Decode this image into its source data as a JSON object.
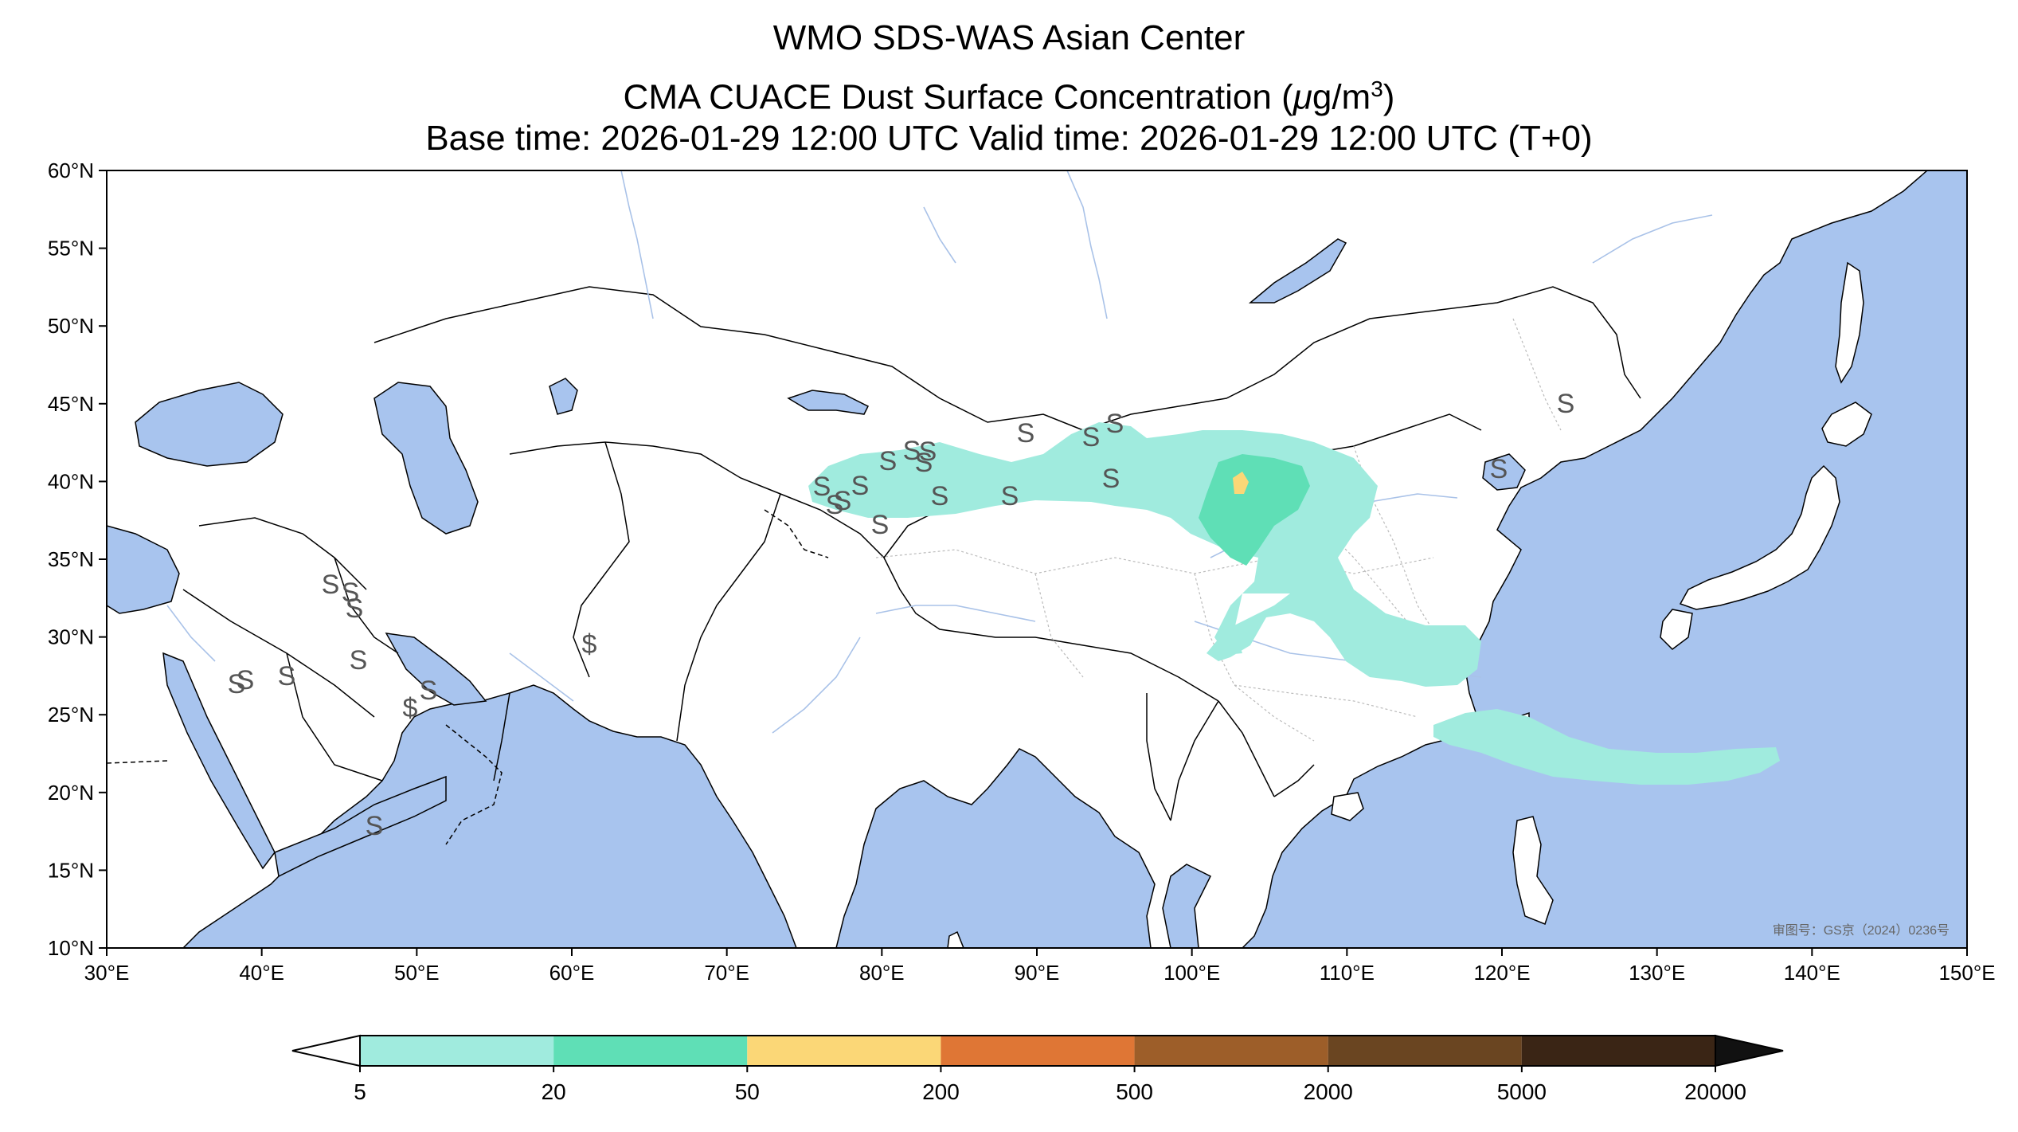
{
  "title": {
    "line1": "WMO SDS-WAS Asian Center",
    "line2_text": "CMA CUACE Dust Surface Concentration (",
    "line2_mu": "μ",
    "line2_unit": "g/m",
    "line2_exp": "3",
    "line2_close": ")",
    "line3": "Base time: 2026-01-29 12:00 UTC Valid time: 2026-01-29 12:00 UTC (T+0)"
  },
  "map": {
    "lon_ticks": [
      "30°E",
      "40°E",
      "50°E",
      "60°E",
      "70°E",
      "80°E",
      "90°E",
      "100°E",
      "110°E",
      "120°E",
      "130°E",
      "140°E",
      "150°E"
    ],
    "lat_ticks": [
      "60°N",
      "55°N",
      "50°N",
      "45°N",
      "40°N",
      "35°N",
      "30°N",
      "25°N",
      "20°N",
      "15°N",
      "10°N"
    ],
    "extent": {
      "lon": [
        30,
        150
      ],
      "lat": [
        10,
        60
      ]
    },
    "colors": {
      "ocean": "#a8c4ee",
      "land": "#ffffff",
      "border": "#000000",
      "river": "#a9c2e8",
      "province": "#bbbbbb"
    },
    "approval_text": "审图号：GS京（2024）0236号",
    "sandstorm_symbol": "S",
    "dust_symbol": "$"
  },
  "colorbar": {
    "levels": [
      "5",
      "20",
      "50",
      "200",
      "500",
      "2000",
      "5000",
      "20000"
    ],
    "colors": [
      "#ffffff",
      "#a0ebde",
      "#5fdfb6",
      "#fbd777",
      "#df7635",
      "#9d5e29",
      "#6a4521",
      "#3a2515",
      "#111111"
    ],
    "extend": "both"
  }
}
